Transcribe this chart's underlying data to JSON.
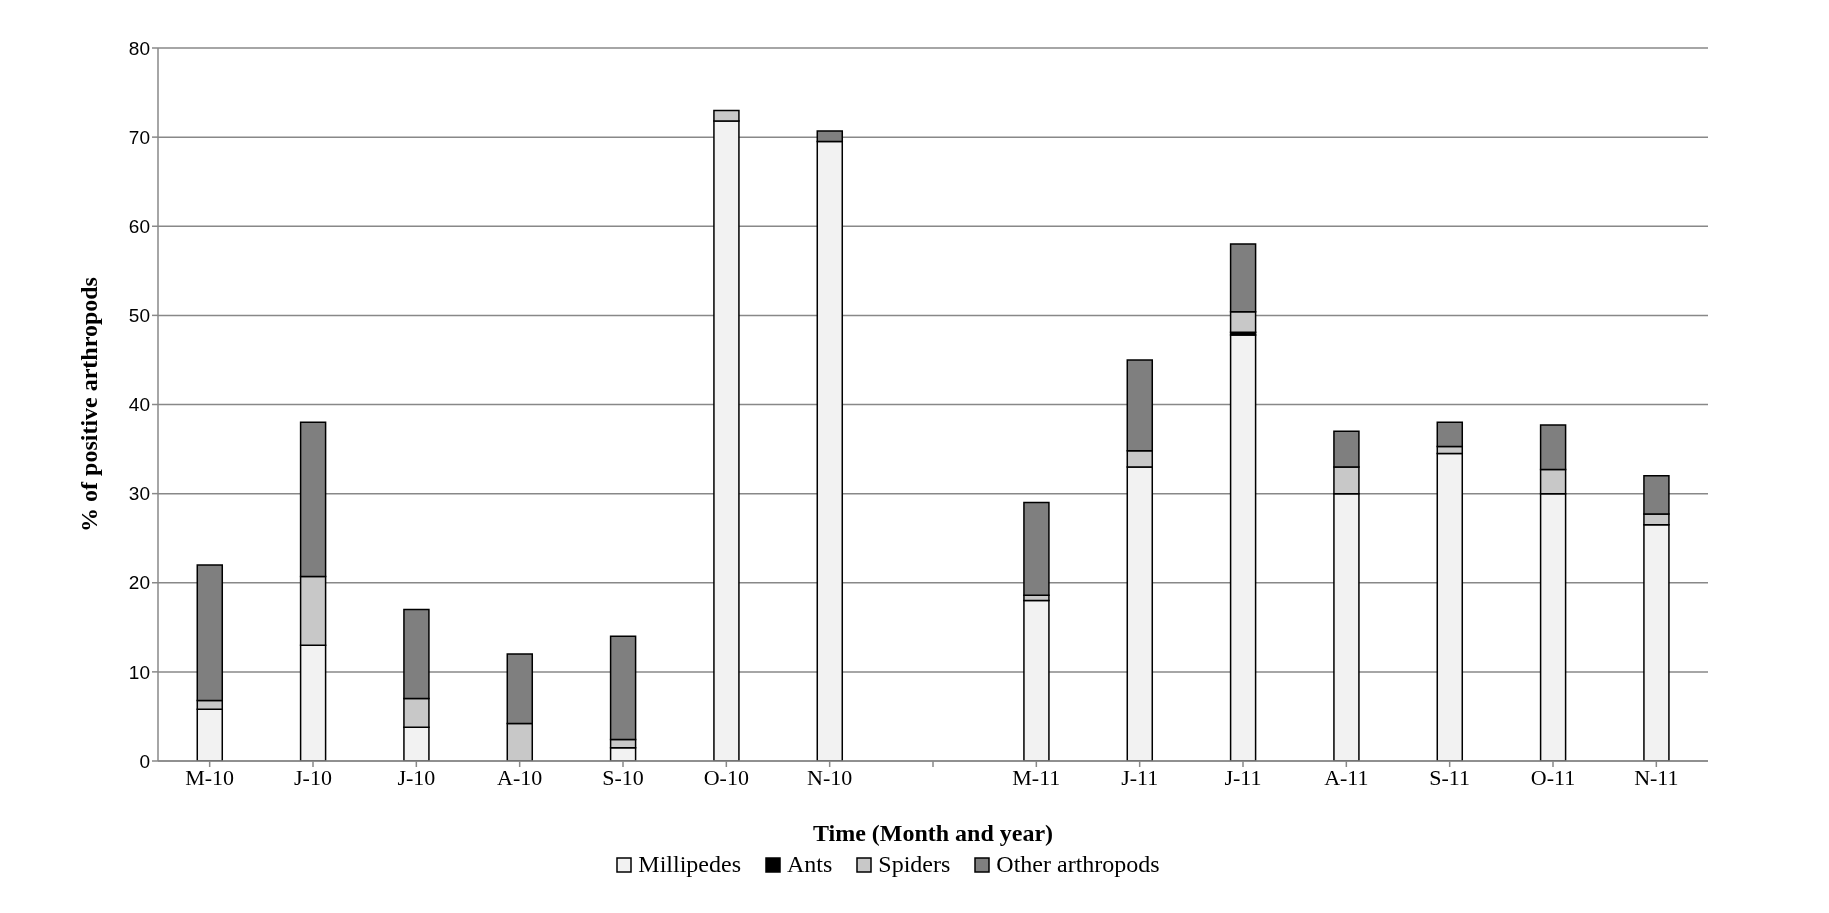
{
  "chart_data": {
    "type": "bar",
    "stacked": true,
    "xlabel": "Time (Month and year)",
    "ylabel": "% of positive arthropods",
    "categories": [
      "M-10",
      "J-10",
      "J-10",
      "A-10",
      "S-10",
      "O-10",
      "N-10",
      null,
      "M-11",
      "J-11",
      "J-11",
      "A-11",
      "S-11",
      "O-11",
      "N-11"
    ],
    "series": [
      {
        "name": "Millipedes",
        "color": "#f2f2f2",
        "values": [
          5.8,
          13,
          3.8,
          0,
          1.5,
          71.8,
          69.5,
          null,
          18,
          33,
          47.8,
          30,
          34.5,
          30,
          26.5
        ]
      },
      {
        "name": "Ants",
        "color": "#000000",
        "values": [
          0,
          0,
          0,
          0,
          0,
          0,
          0,
          null,
          0,
          0,
          0.3,
          0,
          0,
          0,
          0
        ]
      },
      {
        "name": "Spiders",
        "color": "#c8c8c8",
        "values": [
          1,
          7.7,
          3.2,
          4.2,
          0.9,
          1.2,
          0,
          null,
          0.6,
          1.8,
          2.3,
          3,
          0.8,
          2.7,
          1.2
        ]
      },
      {
        "name": "Other arthropods",
        "color": "#7f7f7f",
        "values": [
          15.2,
          17.3,
          10,
          7.8,
          11.6,
          0,
          1.2,
          null,
          10.4,
          10.2,
          7.6,
          4,
          2.7,
          5,
          4.3
        ]
      }
    ],
    "ylim": [
      0,
      80
    ],
    "yticks": [
      0,
      10,
      20,
      30,
      40,
      50,
      60,
      70,
      80
    ],
    "grid": "y",
    "legend": "bottom"
  }
}
